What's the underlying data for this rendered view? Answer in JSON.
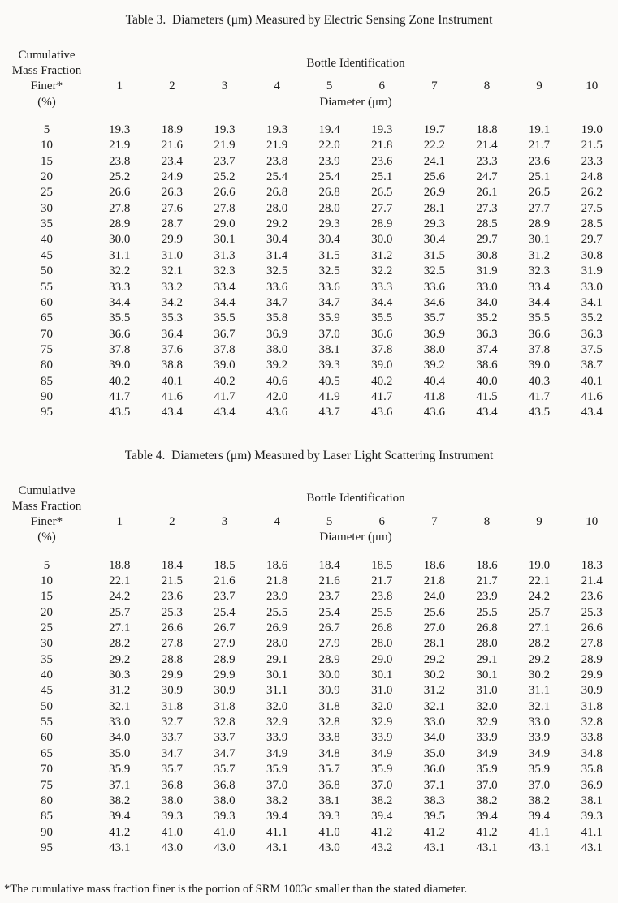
{
  "page": {
    "background": "#fbfaf8",
    "text_color": "#1c1c1c"
  },
  "tables": [
    {
      "title": "Table 3.  Diameters (μm) Measured by Electric Sensing Zone Instrument",
      "row_header_lines": [
        "Cumulative",
        "Mass Fraction",
        "Finer*",
        "(%)"
      ],
      "col_group_header": "Bottle Identification",
      "bottle_numbers": [
        "1",
        "2",
        "3",
        "4",
        "5",
        "6",
        "7",
        "8",
        "9",
        "10"
      ],
      "unit_header": "Diameter (μm)",
      "rows": [
        {
          "pct": "5",
          "values": [
            "19.3",
            "18.9",
            "19.3",
            "19.3",
            "19.4",
            "19.3",
            "19.7",
            "18.8",
            "19.1",
            "19.0"
          ]
        },
        {
          "pct": "10",
          "values": [
            "21.9",
            "21.6",
            "21.9",
            "21.9",
            "22.0",
            "21.8",
            "22.2",
            "21.4",
            "21.7",
            "21.5"
          ]
        },
        {
          "pct": "15",
          "values": [
            "23.8",
            "23.4",
            "23.7",
            "23.8",
            "23.9",
            "23.6",
            "24.1",
            "23.3",
            "23.6",
            "23.3"
          ]
        },
        {
          "pct": "20",
          "values": [
            "25.2",
            "24.9",
            "25.2",
            "25.4",
            "25.4",
            "25.1",
            "25.6",
            "24.7",
            "25.1",
            "24.8"
          ]
        },
        {
          "pct": "25",
          "values": [
            "26.6",
            "26.3",
            "26.6",
            "26.8",
            "26.8",
            "26.5",
            "26.9",
            "26.1",
            "26.5",
            "26.2"
          ]
        },
        {
          "pct": "30",
          "values": [
            "27.8",
            "27.6",
            "27.8",
            "28.0",
            "28.0",
            "27.7",
            "28.1",
            "27.3",
            "27.7",
            "27.5"
          ]
        },
        {
          "pct": "35",
          "values": [
            "28.9",
            "28.7",
            "29.0",
            "29.2",
            "29.3",
            "28.9",
            "29.3",
            "28.5",
            "28.9",
            "28.5"
          ]
        },
        {
          "pct": "40",
          "values": [
            "30.0",
            "29.9",
            "30.1",
            "30.4",
            "30.4",
            "30.0",
            "30.4",
            "29.7",
            "30.1",
            "29.7"
          ]
        },
        {
          "pct": "45",
          "values": [
            "31.1",
            "31.0",
            "31.3",
            "31.4",
            "31.5",
            "31.2",
            "31.5",
            "30.8",
            "31.2",
            "30.8"
          ]
        },
        {
          "pct": "50",
          "values": [
            "32.2",
            "32.1",
            "32.3",
            "32.5",
            "32.5",
            "32.2",
            "32.5",
            "31.9",
            "32.3",
            "31.9"
          ]
        },
        {
          "pct": "55",
          "values": [
            "33.3",
            "33.2",
            "33.4",
            "33.6",
            "33.6",
            "33.3",
            "33.6",
            "33.0",
            "33.4",
            "33.0"
          ]
        },
        {
          "pct": "60",
          "values": [
            "34.4",
            "34.2",
            "34.4",
            "34.7",
            "34.7",
            "34.4",
            "34.6",
            "34.0",
            "34.4",
            "34.1"
          ]
        },
        {
          "pct": "65",
          "values": [
            "35.5",
            "35.3",
            "35.5",
            "35.8",
            "35.9",
            "35.5",
            "35.7",
            "35.2",
            "35.5",
            "35.2"
          ]
        },
        {
          "pct": "70",
          "values": [
            "36.6",
            "36.4",
            "36.7",
            "36.9",
            "37.0",
            "36.6",
            "36.9",
            "36.3",
            "36.6",
            "36.3"
          ]
        },
        {
          "pct": "75",
          "values": [
            "37.8",
            "37.6",
            "37.8",
            "38.0",
            "38.1",
            "37.8",
            "38.0",
            "37.4",
            "37.8",
            "37.5"
          ]
        },
        {
          "pct": "80",
          "values": [
            "39.0",
            "38.8",
            "39.0",
            "39.2",
            "39.3",
            "39.0",
            "39.2",
            "38.6",
            "39.0",
            "38.7"
          ]
        },
        {
          "pct": "85",
          "values": [
            "40.2",
            "40.1",
            "40.2",
            "40.6",
            "40.5",
            "40.2",
            "40.4",
            "40.0",
            "40.3",
            "40.1"
          ]
        },
        {
          "pct": "90",
          "values": [
            "41.7",
            "41.6",
            "41.7",
            "42.0",
            "41.9",
            "41.7",
            "41.8",
            "41.5",
            "41.7",
            "41.6"
          ]
        },
        {
          "pct": "95",
          "values": [
            "43.5",
            "43.4",
            "43.4",
            "43.6",
            "43.7",
            "43.6",
            "43.6",
            "43.4",
            "43.5",
            "43.4"
          ]
        }
      ]
    },
    {
      "title": "Table 4.  Diameters (μm) Measured by Laser Light Scattering Instrument",
      "row_header_lines": [
        "Cumulative",
        "Mass Fraction",
        "Finer*",
        "(%)"
      ],
      "col_group_header": "Bottle Identification",
      "bottle_numbers": [
        "1",
        "2",
        "3",
        "4",
        "5",
        "6",
        "7",
        "8",
        "9",
        "10"
      ],
      "unit_header": "Diameter (μm)",
      "rows": [
        {
          "pct": "5",
          "values": [
            "18.8",
            "18.4",
            "18.5",
            "18.6",
            "18.4",
            "18.5",
            "18.6",
            "18.6",
            "19.0",
            "18.3"
          ]
        },
        {
          "pct": "10",
          "values": [
            "22.1",
            "21.5",
            "21.6",
            "21.8",
            "21.6",
            "21.7",
            "21.8",
            "21.7",
            "22.1",
            "21.4"
          ]
        },
        {
          "pct": "15",
          "values": [
            "24.2",
            "23.6",
            "23.7",
            "23.9",
            "23.7",
            "23.8",
            "24.0",
            "23.9",
            "24.2",
            "23.6"
          ]
        },
        {
          "pct": "20",
          "values": [
            "25.7",
            "25.3",
            "25.4",
            "25.5",
            "25.4",
            "25.5",
            "25.6",
            "25.5",
            "25.7",
            "25.3"
          ]
        },
        {
          "pct": "25",
          "values": [
            "27.1",
            "26.6",
            "26.7",
            "26.9",
            "26.7",
            "26.8",
            "27.0",
            "26.8",
            "27.1",
            "26.6"
          ]
        },
        {
          "pct": "30",
          "values": [
            "28.2",
            "27.8",
            "27.9",
            "28.0",
            "27.9",
            "28.0",
            "28.1",
            "28.0",
            "28.2",
            "27.8"
          ]
        },
        {
          "pct": "35",
          "values": [
            "29.2",
            "28.8",
            "28.9",
            "29.1",
            "28.9",
            "29.0",
            "29.2",
            "29.1",
            "29.2",
            "28.9"
          ]
        },
        {
          "pct": "40",
          "values": [
            "30.3",
            "29.9",
            "29.9",
            "30.1",
            "30.0",
            "30.1",
            "30.2",
            "30.1",
            "30.2",
            "29.9"
          ]
        },
        {
          "pct": "45",
          "values": [
            "31.2",
            "30.9",
            "30.9",
            "31.1",
            "30.9",
            "31.0",
            "31.2",
            "31.0",
            "31.1",
            "30.9"
          ]
        },
        {
          "pct": "50",
          "values": [
            "32.1",
            "31.8",
            "31.8",
            "32.0",
            "31.8",
            "32.0",
            "32.1",
            "32.0",
            "32.1",
            "31.8"
          ]
        },
        {
          "pct": "55",
          "values": [
            "33.0",
            "32.7",
            "32.8",
            "32.9",
            "32.8",
            "32.9",
            "33.0",
            "32.9",
            "33.0",
            "32.8"
          ]
        },
        {
          "pct": "60",
          "values": [
            "34.0",
            "33.7",
            "33.7",
            "33.9",
            "33.8",
            "33.9",
            "34.0",
            "33.9",
            "33.9",
            "33.8"
          ]
        },
        {
          "pct": "65",
          "values": [
            "35.0",
            "34.7",
            "34.7",
            "34.9",
            "34.8",
            "34.9",
            "35.0",
            "34.9",
            "34.9",
            "34.8"
          ]
        },
        {
          "pct": "70",
          "values": [
            "35.9",
            "35.7",
            "35.7",
            "35.9",
            "35.7",
            "35.9",
            "36.0",
            "35.9",
            "35.9",
            "35.8"
          ]
        },
        {
          "pct": "75",
          "values": [
            "37.1",
            "36.8",
            "36.8",
            "37.0",
            "36.8",
            "37.0",
            "37.1",
            "37.0",
            "37.0",
            "36.9"
          ]
        },
        {
          "pct": "80",
          "values": [
            "38.2",
            "38.0",
            "38.0",
            "38.2",
            "38.1",
            "38.2",
            "38.3",
            "38.2",
            "38.2",
            "38.1"
          ]
        },
        {
          "pct": "85",
          "values": [
            "39.4",
            "39.3",
            "39.3",
            "39.4",
            "39.3",
            "39.4",
            "39.5",
            "39.4",
            "39.4",
            "39.3"
          ]
        },
        {
          "pct": "90",
          "values": [
            "41.2",
            "41.0",
            "41.0",
            "41.1",
            "41.0",
            "41.2",
            "41.2",
            "41.2",
            "41.1",
            "41.1"
          ]
        },
        {
          "pct": "95",
          "values": [
            "43.1",
            "43.0",
            "43.0",
            "43.1",
            "43.0",
            "43.2",
            "43.1",
            "43.1",
            "43.1",
            "43.1"
          ]
        }
      ]
    }
  ],
  "footnote": "*The cumulative mass fraction finer is the portion of SRM 1003c smaller than the stated diameter."
}
